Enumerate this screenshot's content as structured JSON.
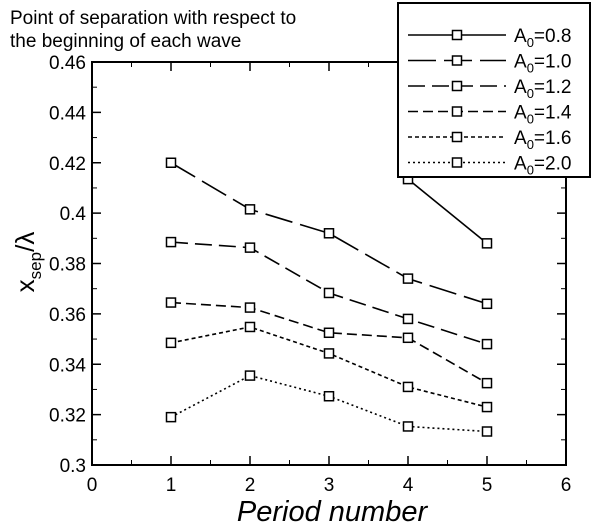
{
  "chart_data": {
    "type": "line",
    "title": "Point of separation with respect to the beginning of each wave",
    "title_lines": [
      "Point of separation with respect to",
      "the beginning of each wave"
    ],
    "xlabel": "Period number",
    "ylabel": {
      "base": "x",
      "sub": "sep",
      "suffix": "/λ"
    },
    "xlim": [
      0,
      6
    ],
    "ylim": [
      0.3,
      0.46
    ],
    "x_ticks": [
      "0",
      "1",
      "2",
      "3",
      "4",
      "5",
      "6"
    ],
    "y_ticks": [
      "0.3",
      "0.32",
      "0.34",
      "0.36",
      "0.38",
      "0.4",
      "0.42",
      "0.44",
      "0.46"
    ],
    "grid": false,
    "legend_position": "top-right",
    "marker": "square",
    "series": [
      {
        "name": "A0=0.8",
        "label_base": "A",
        "label_sub": "0",
        "label_value": "=0.8",
        "dash": "solid",
        "x": [
          4,
          5
        ],
        "values": [
          0.4135,
          0.388
        ]
      },
      {
        "name": "A0=1.0",
        "label_base": "A",
        "label_sub": "0",
        "label_value": "=1.0",
        "dash": "long-dash",
        "x": [
          1,
          2,
          3,
          4,
          5
        ],
        "values": [
          0.42,
          0.4015,
          0.392,
          0.374,
          0.364
        ]
      },
      {
        "name": "A0=1.2",
        "label_base": "A",
        "label_sub": "0",
        "label_value": "=1.2",
        "dash": "dash",
        "x": [
          1,
          2,
          3,
          4,
          5
        ],
        "values": [
          0.3885,
          0.3863,
          0.3683,
          0.358,
          0.348
        ]
      },
      {
        "name": "A0=1.4",
        "label_base": "A",
        "label_sub": "0",
        "label_value": "=1.4",
        "dash": "short-dash",
        "x": [
          1,
          2,
          3,
          4,
          5
        ],
        "values": [
          0.3645,
          0.3625,
          0.3525,
          0.3505,
          0.3325
        ]
      },
      {
        "name": "A0=1.6",
        "label_base": "A",
        "label_sub": "0",
        "label_value": "=1.6",
        "dash": "dotted-dash",
        "x": [
          1,
          2,
          3,
          4,
          5
        ],
        "values": [
          0.3485,
          0.3548,
          0.3443,
          0.331,
          0.323
        ]
      },
      {
        "name": "A0=2.0",
        "label_base": "A",
        "label_sub": "0",
        "label_value": "=2.0",
        "dash": "dotted",
        "x": [
          1,
          2,
          3,
          4,
          5
        ],
        "values": [
          0.319,
          0.3355,
          0.3273,
          0.3153,
          0.3133
        ]
      }
    ]
  }
}
